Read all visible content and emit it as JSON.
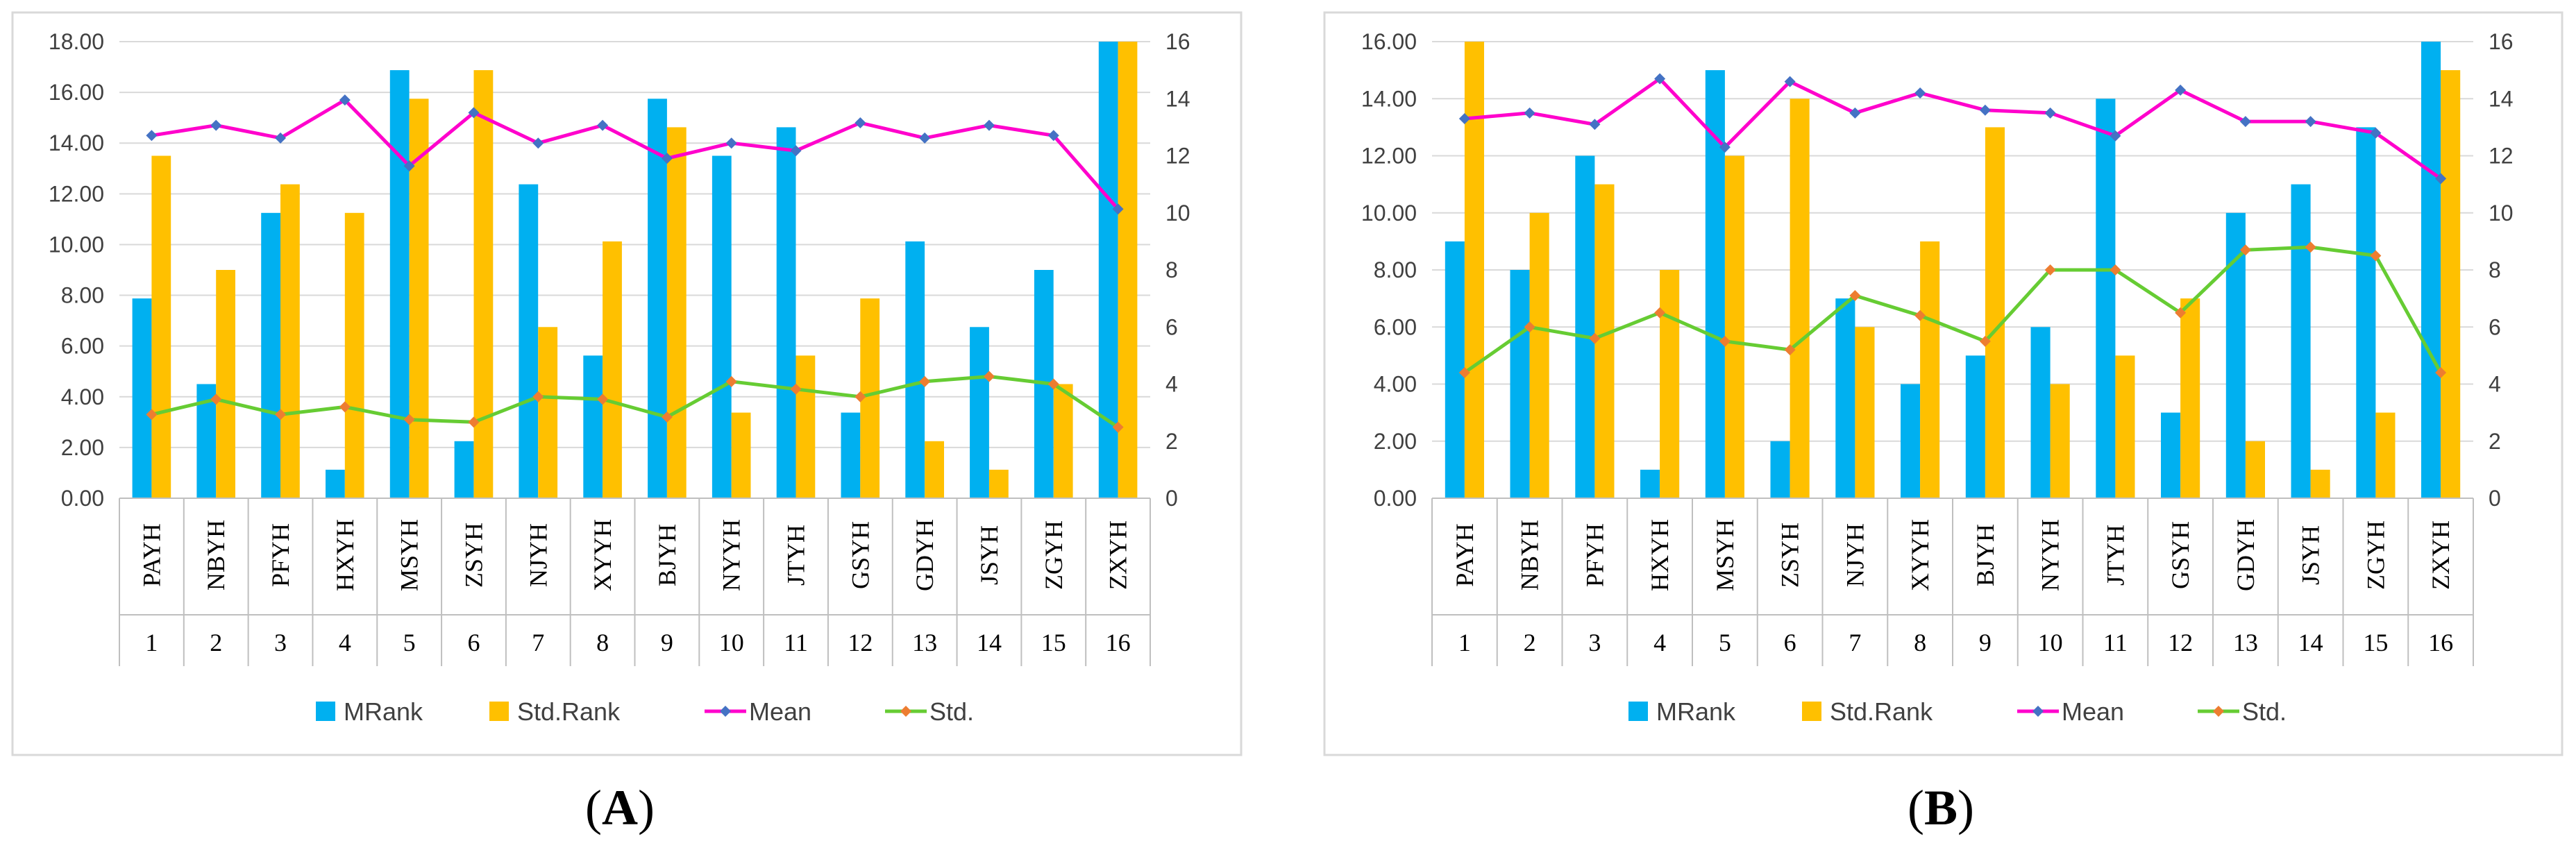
{
  "colors": {
    "mrank": "#00b0f0",
    "std_rank": "#ffc000",
    "mean_line": "#ff00cc",
    "mean_marker": "#4472c4",
    "std_line": "#66cc33",
    "std_marker": "#ed7d31"
  },
  "captions": [
    {
      "open": "(",
      "letter": "A",
      "close": ")"
    },
    {
      "open": "(",
      "letter": "B",
      "close": ")"
    }
  ],
  "chart_data": [
    {
      "type": "bar",
      "title": "",
      "categories": [
        "PAYH",
        "NBYH",
        "PFYH",
        "HXYH",
        "MSYH",
        "ZSYH",
        "NJYH",
        "XYYH",
        "BJYH",
        "NYYH",
        "JTYH",
        "GSYH",
        "GDYH",
        "JSYH",
        "ZGYH",
        "ZXYH"
      ],
      "numbers": [
        "1",
        "2",
        "3",
        "4",
        "5",
        "6",
        "7",
        "8",
        "9",
        "10",
        "11",
        "12",
        "13",
        "14",
        "15",
        "16"
      ],
      "left_axis": {
        "ylim": [
          0,
          18
        ],
        "ticks": [
          "0.00",
          "2.00",
          "4.00",
          "6.00",
          "8.00",
          "10.00",
          "12.00",
          "14.00",
          "16.00",
          "18.00"
        ]
      },
      "right_axis": {
        "ylim": [
          0,
          16
        ],
        "ticks": [
          "0",
          "2",
          "4",
          "6",
          "8",
          "10",
          "12",
          "14",
          "16"
        ]
      },
      "series": [
        {
          "name": "MRank",
          "kind": "bar",
          "axis": "right",
          "values": [
            7,
            4,
            10,
            1,
            15,
            2,
            11,
            5,
            14,
            12,
            13,
            3,
            9,
            6,
            8,
            16
          ]
        },
        {
          "name": "Std.Rank",
          "kind": "bar",
          "axis": "right",
          "values": [
            12,
            8,
            11,
            10,
            14,
            15,
            6,
            9,
            13,
            3,
            5,
            7,
            2,
            1,
            4,
            16
          ]
        },
        {
          "name": "Mean",
          "kind": "line",
          "axis": "left",
          "values": [
            14.3,
            14.7,
            14.2,
            15.7,
            13.1,
            15.2,
            14.0,
            14.7,
            13.4,
            14.0,
            13.7,
            14.8,
            14.2,
            14.7,
            14.3,
            11.4
          ]
        },
        {
          "name": "Std.",
          "kind": "line",
          "axis": "left",
          "values": [
            3.3,
            3.9,
            3.3,
            3.6,
            3.1,
            3.0,
            4.0,
            3.9,
            3.2,
            4.6,
            4.3,
            4.0,
            4.6,
            4.8,
            4.5,
            2.8
          ]
        }
      ],
      "legend": [
        "MRank",
        "Std.Rank",
        "Mean",
        "Std."
      ],
      "legend_position": "bottom"
    },
    {
      "type": "bar",
      "title": "",
      "categories": [
        "PAYH",
        "NBYH",
        "PFYH",
        "HXYH",
        "MSYH",
        "ZSYH",
        "NJYH",
        "XYYH",
        "BJYH",
        "NYYH",
        "JTYH",
        "GSYH",
        "GDYH",
        "JSYH",
        "ZGYH",
        "ZXYH"
      ],
      "numbers": [
        "1",
        "2",
        "3",
        "4",
        "5",
        "6",
        "7",
        "8",
        "9",
        "10",
        "11",
        "12",
        "13",
        "14",
        "15",
        "16"
      ],
      "left_axis": {
        "ylim": [
          0,
          16
        ],
        "ticks": [
          "0.00",
          "2.00",
          "4.00",
          "6.00",
          "8.00",
          "10.00",
          "12.00",
          "14.00",
          "16.00"
        ]
      },
      "right_axis": {
        "ylim": [
          0,
          16
        ],
        "ticks": [
          "0",
          "2",
          "4",
          "6",
          "8",
          "10",
          "12",
          "14",
          "16"
        ]
      },
      "series": [
        {
          "name": "MRank",
          "kind": "bar",
          "axis": "left",
          "values": [
            9,
            8,
            12,
            1,
            15,
            2,
            7,
            4,
            5,
            6,
            14,
            3,
            10,
            11,
            13,
            16
          ]
        },
        {
          "name": "Std.Rank",
          "kind": "bar",
          "axis": "left",
          "values": [
            16,
            10,
            11,
            8,
            12,
            14,
            6,
            9,
            13,
            4,
            5,
            7,
            2,
            1,
            3,
            15
          ]
        },
        {
          "name": "Mean",
          "kind": "line",
          "axis": "left",
          "values": [
            13.3,
            13.5,
            13.1,
            14.7,
            12.3,
            14.6,
            13.5,
            14.2,
            13.6,
            13.5,
            12.7,
            14.3,
            13.2,
            13.2,
            12.8,
            11.2
          ]
        },
        {
          "name": "Std.",
          "kind": "line",
          "axis": "left",
          "values": [
            4.4,
            6.0,
            5.6,
            6.5,
            5.5,
            5.2,
            7.1,
            6.4,
            5.5,
            8.0,
            8.0,
            6.5,
            8.7,
            8.8,
            8.5,
            4.4
          ]
        }
      ],
      "legend": [
        "MRank",
        "Std.Rank",
        "Mean",
        "Std."
      ],
      "legend_position": "bottom"
    }
  ]
}
